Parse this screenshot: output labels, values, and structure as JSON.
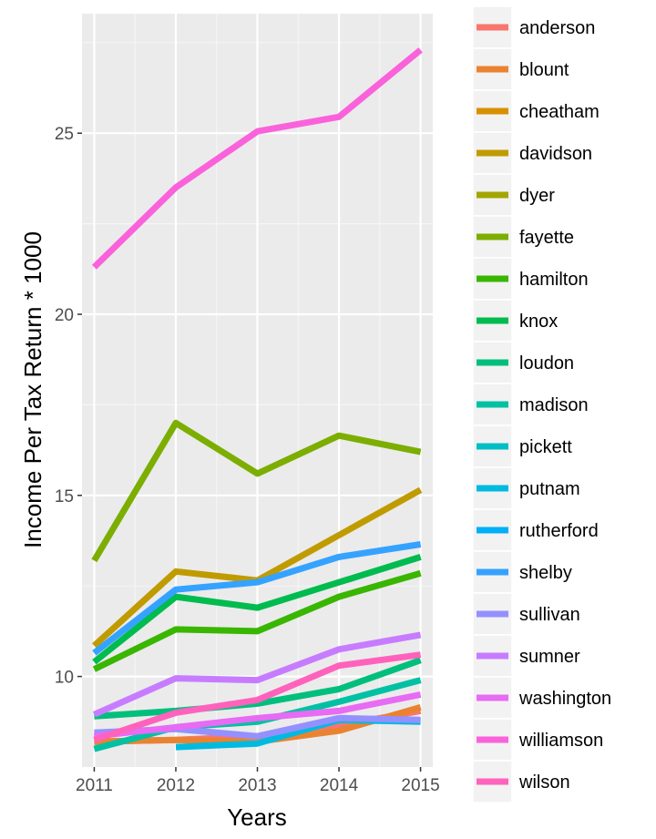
{
  "chart_data": {
    "type": "line",
    "title": "",
    "xlabel": "Years",
    "ylabel": "Income Per Tax Return * 1000",
    "x": [
      2011,
      2012,
      2013,
      2014,
      2015
    ],
    "x_tick_labels": [
      "2011",
      "2012",
      "2013",
      "2014",
      "2015"
    ],
    "xlim": [
      2010.85,
      2015.15
    ],
    "y_ticks": [
      10,
      15,
      20,
      25
    ],
    "y_tick_labels": [
      "10",
      "15",
      "20",
      "25"
    ],
    "ylim": [
      7.5,
      28.3
    ],
    "grid": true,
    "legend_position": "right",
    "series": [
      {
        "name": "anderson",
        "color": "#F8766D",
        "values": [
          8.2,
          8.25,
          8.35,
          8.65,
          9.05
        ]
      },
      {
        "name": "blount",
        "color": "#EA8331",
        "values": [
          8.2,
          8.25,
          8.2,
          8.5,
          9.15
        ]
      },
      {
        "name": "cheatham",
        "color": "#D89000",
        "values": [
          null,
          null,
          null,
          null,
          null
        ]
      },
      {
        "name": "davidson",
        "color": "#C09B00",
        "values": [
          10.85,
          12.9,
          12.65,
          13.9,
          15.15
        ]
      },
      {
        "name": "dyer",
        "color": "#A3A500",
        "values": [
          null,
          null,
          null,
          null,
          null
        ]
      },
      {
        "name": "fayette",
        "color": "#7CAE00",
        "values": [
          13.2,
          17.0,
          15.6,
          16.65,
          16.2
        ]
      },
      {
        "name": "hamilton",
        "color": "#39B600",
        "values": [
          10.2,
          11.3,
          11.25,
          12.2,
          12.85
        ]
      },
      {
        "name": "knox",
        "color": "#00BB4E",
        "values": [
          10.4,
          12.2,
          11.9,
          12.6,
          13.3
        ]
      },
      {
        "name": "loudon",
        "color": "#00BF7D",
        "values": [
          8.9,
          9.05,
          9.25,
          9.65,
          10.45
        ]
      },
      {
        "name": "madison",
        "color": "#00C1A3",
        "values": [
          8.0,
          8.6,
          8.75,
          9.3,
          9.9
        ]
      },
      {
        "name": "pickett",
        "color": "#00BFC4",
        "values": [
          null,
          null,
          null,
          null,
          null
        ]
      },
      {
        "name": "putnam",
        "color": "#00BAE0",
        "values": [
          null,
          8.05,
          8.15,
          8.8,
          8.75
        ]
      },
      {
        "name": "rutherford",
        "color": "#00B0F6",
        "values": [
          null,
          null,
          null,
          null,
          null
        ]
      },
      {
        "name": "shelby",
        "color": "#35A2FF",
        "values": [
          10.65,
          12.4,
          12.6,
          13.3,
          13.65
        ]
      },
      {
        "name": "sullivan",
        "color": "#9590FF",
        "values": [
          8.45,
          8.55,
          8.35,
          8.85,
          8.8
        ]
      },
      {
        "name": "sumner",
        "color": "#C77CFF",
        "values": [
          8.95,
          9.95,
          9.9,
          10.75,
          11.15
        ]
      },
      {
        "name": "washington",
        "color": "#E76BF3",
        "values": [
          8.35,
          8.6,
          8.85,
          9.05,
          9.5
        ]
      },
      {
        "name": "williamson",
        "color": "#FA62DB",
        "values": [
          21.3,
          23.5,
          25.05,
          25.45,
          27.3
        ]
      },
      {
        "name": "wilson",
        "color": "#FF62BC",
        "values": [
          8.25,
          9.0,
          9.35,
          10.3,
          10.6
        ]
      }
    ],
    "legend_items": [
      {
        "name": "anderson",
        "color": "#F8766D"
      },
      {
        "name": "blount",
        "color": "#EA8331"
      },
      {
        "name": "cheatham",
        "color": "#D89000"
      },
      {
        "name": "davidson",
        "color": "#C09B00"
      },
      {
        "name": "dyer",
        "color": "#A3A500"
      },
      {
        "name": "fayette",
        "color": "#7CAE00"
      },
      {
        "name": "hamilton",
        "color": "#39B600"
      },
      {
        "name": "knox",
        "color": "#00BB4E"
      },
      {
        "name": "loudon",
        "color": "#00BF7D"
      },
      {
        "name": "madison",
        "color": "#00C1A3"
      },
      {
        "name": "pickett",
        "color": "#00BFC4"
      },
      {
        "name": "putnam",
        "color": "#00BAE0"
      },
      {
        "name": "rutherford",
        "color": "#00B0F6"
      },
      {
        "name": "shelby",
        "color": "#35A2FF"
      },
      {
        "name": "sullivan",
        "color": "#9590FF"
      },
      {
        "name": "sumner",
        "color": "#C77CFF"
      },
      {
        "name": "washington",
        "color": "#E76BF3"
      },
      {
        "name": "williamson",
        "color": "#FA62DB"
      },
      {
        "name": "wilson",
        "color": "#FF62BC"
      }
    ]
  }
}
